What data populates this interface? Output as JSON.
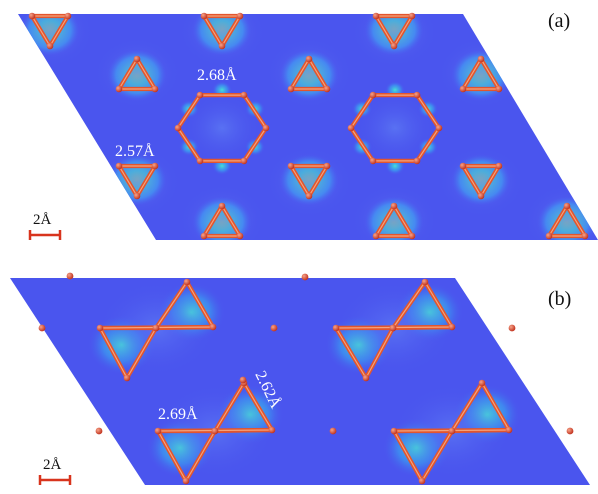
{
  "colors": {
    "background": "#4a55ee",
    "bond": "#e2552e",
    "bond_highlight": "#f4a37c",
    "atom": "#d9412a",
    "density_high": "#9cf06a",
    "density_mid": "#2fe0d2",
    "density_low": "#35b8f0",
    "scale_bar": "#d8341d",
    "label_light": "#ffffff",
    "label_dark": "#111111"
  },
  "panel_a": {
    "label": "(a)",
    "bond_label_hexagon": "2.68Å",
    "bond_label_triangle": "2.57Å",
    "scale_label": "2Å"
  },
  "panel_b": {
    "label": "(b)",
    "bond_label_bowtie": "2.69Å",
    "bond_label_diagonal": "2.62Å",
    "scale_label": "2Å"
  }
}
